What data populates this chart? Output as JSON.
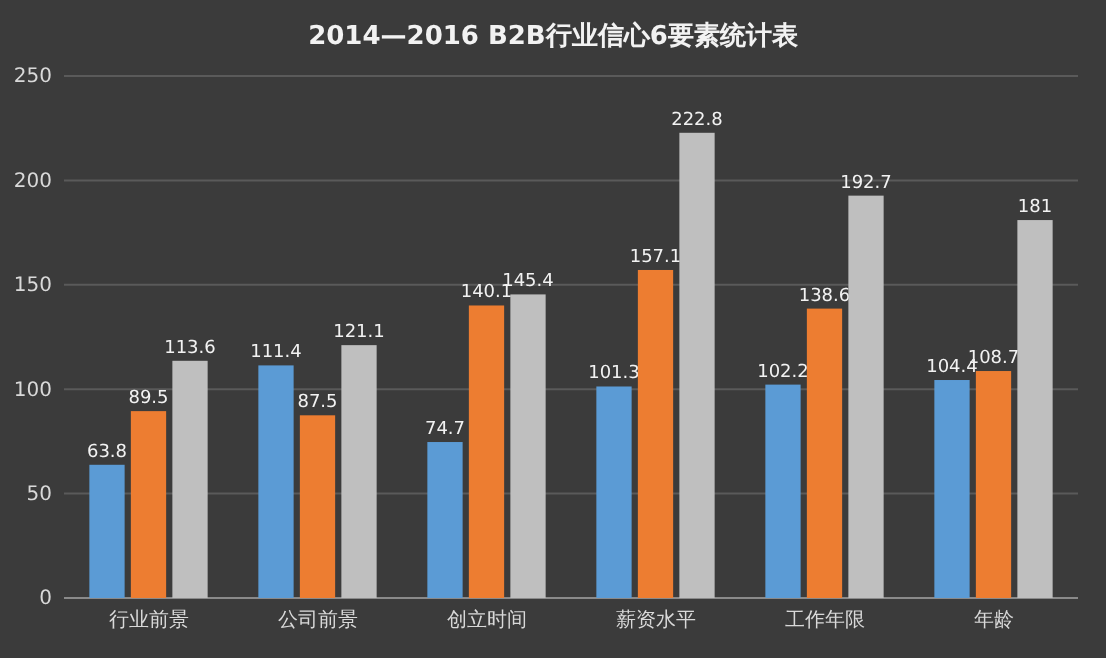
{
  "chart_data": {
    "type": "bar",
    "title": "2014—2016 B2B行业信心6要素统计表",
    "categories": [
      "行业前景",
      "公司前景",
      "创立时间",
      "薪资水平",
      "工作年限",
      "年龄"
    ],
    "series": [
      {
        "color": "#5b9bd5",
        "values": [
          63.8,
          111.4,
          74.7,
          101.3,
          102.2,
          104.4
        ]
      },
      {
        "color": "#ed7d31",
        "values": [
          89.5,
          87.5,
          140.1,
          157.1,
          138.6,
          108.7
        ]
      },
      {
        "color": "#bfbfbf",
        "values": [
          113.6,
          121.1,
          145.4,
          222.8,
          192.7,
          181
        ]
      }
    ],
    "ylim": [
      0,
      250
    ],
    "yticks": [
      0,
      50,
      100,
      150,
      200,
      250
    ],
    "grid": "y",
    "data_labels": true
  }
}
